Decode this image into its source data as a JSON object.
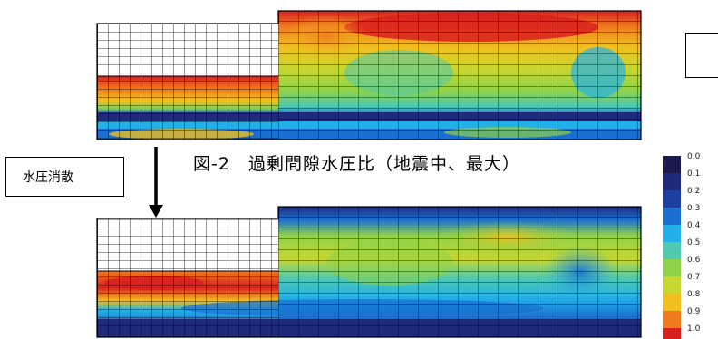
{
  "annotation": {
    "label": "水圧消散"
  },
  "caption": {
    "text": "図-2　過剰間隙水圧比（地震中、最大）"
  },
  "legend": {
    "ticks": [
      "0.0",
      "0.1",
      "0.2",
      "0.3",
      "0.4",
      "0.5",
      "0.6",
      "0.7",
      "0.8",
      "0.9",
      "1.0"
    ],
    "colors": [
      "#1a1a4e",
      "#1f2a7a",
      "#1f3fa0",
      "#1a6fd0",
      "#23b0e8",
      "#4fc9b0",
      "#8fd24a",
      "#c8d630",
      "#f0c020",
      "#f07a20",
      "#d82020"
    ]
  },
  "chart_data": {
    "type": "heatmap",
    "title": "図-2　過剰間隙水圧比（地震中、最大）",
    "colorbar": {
      "min": 0.0,
      "max": 1.0,
      "step": 0.1
    }
  }
}
